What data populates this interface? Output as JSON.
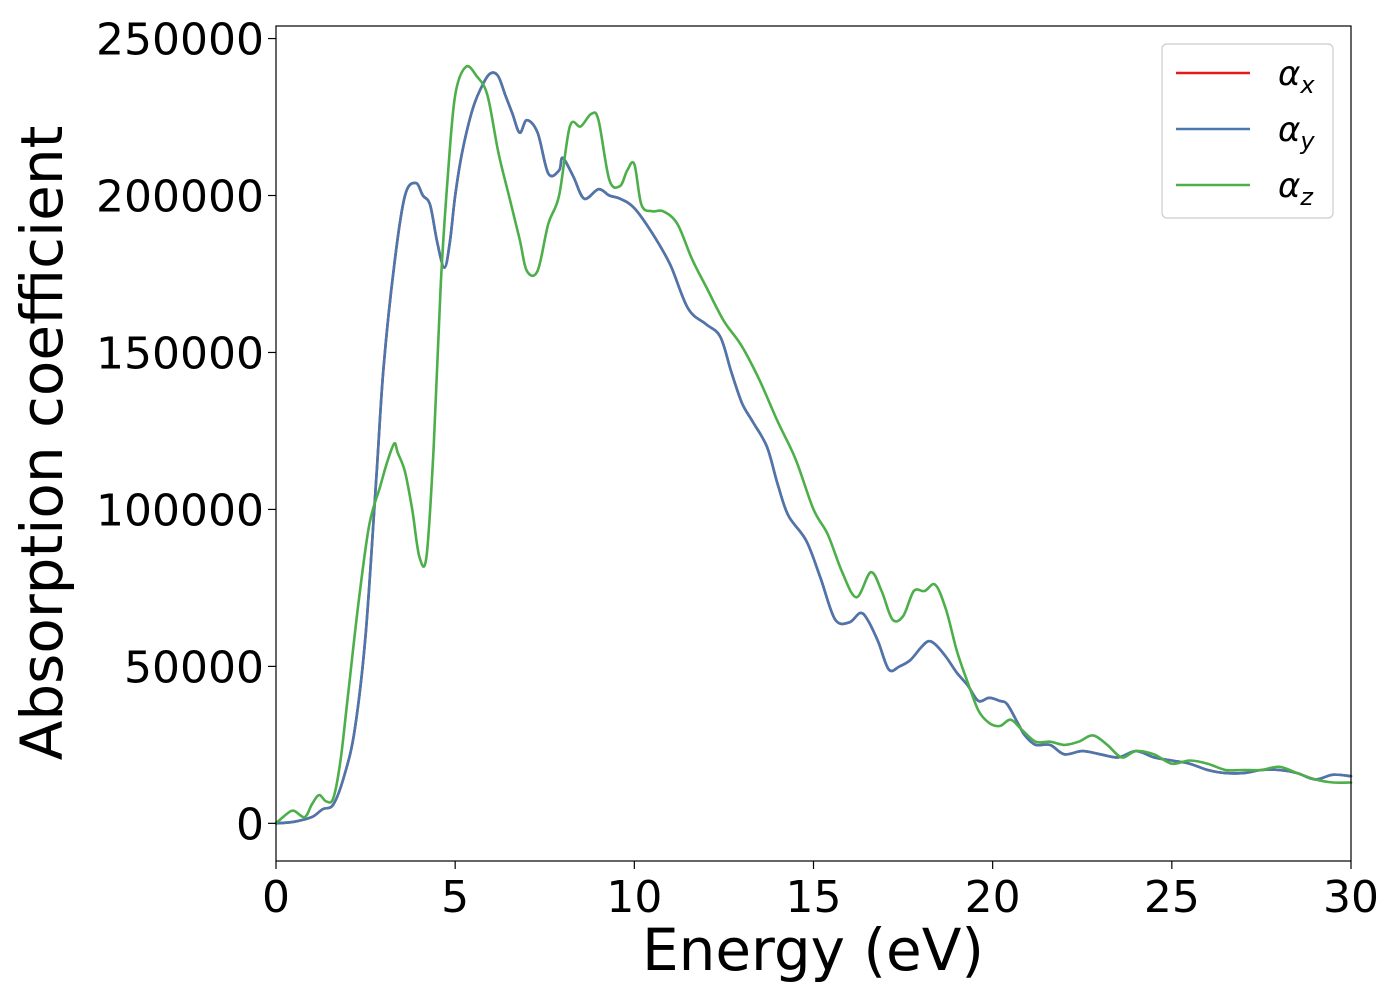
{
  "chart_data": {
    "type": "line",
    "title": "",
    "xlabel": "Energy (eV)",
    "ylabel": "Absorption coefficient",
    "xlim": [
      0,
      30
    ],
    "ylim": [
      -12000,
      254000
    ],
    "x_ticks": [
      0,
      5,
      10,
      15,
      20,
      25,
      30
    ],
    "x_tick_labels": [
      "0",
      "5",
      "10",
      "15",
      "20",
      "25",
      "30"
    ],
    "y_ticks": [
      0,
      50000,
      100000,
      150000,
      200000,
      250000
    ],
    "y_tick_labels": [
      "0",
      "50000",
      "100000",
      "150000",
      "200000",
      "250000"
    ],
    "grid": false,
    "legend_position": "top-right",
    "series": [
      {
        "name": "α_x",
        "legend_symbol": "α",
        "legend_subscript": "x",
        "color": "#e41a1c",
        "x": [
          0,
          0.5,
          1,
          1.3,
          1.6,
          1.9,
          2.2,
          2.5,
          2.8,
          3.0,
          3.3,
          3.6,
          3.9,
          4.1,
          4.3,
          4.5,
          4.7,
          4.85,
          5.0,
          5.2,
          5.5,
          5.8,
          6.0,
          6.2,
          6.4,
          6.6,
          6.8,
          7.0,
          7.3,
          7.6,
          7.9,
          8.0,
          8.3,
          8.6,
          9.0,
          9.3,
          9.6,
          10.0,
          10.5,
          11.0,
          11.5,
          12.0,
          12.4,
          12.7,
          13.0,
          13.3,
          13.7,
          14.0,
          14.3,
          14.8,
          15.2,
          15.6,
          16.0,
          16.3,
          16.5,
          16.8,
          17.1,
          17.4,
          17.7,
          18.0,
          18.2,
          18.4,
          18.7,
          19.0,
          19.3,
          19.6,
          19.9,
          20.2,
          20.4,
          20.7,
          20.9,
          21.2,
          21.6,
          22.0,
          22.5,
          23.0,
          23.5,
          24.0,
          24.5,
          25.0,
          25.5,
          26.0,
          26.5,
          27.0,
          27.5,
          28.0,
          28.5,
          29.0,
          29.5,
          30.0
        ],
        "y": [
          0,
          500,
          2000,
          4500,
          6000,
          15000,
          30000,
          60000,
          110000,
          145000,
          178000,
          200000,
          204000,
          200000,
          197000,
          185000,
          177000,
          185000,
          200000,
          214000,
          228000,
          236000,
          239000,
          238000,
          232000,
          226000,
          220000,
          224000,
          220000,
          207000,
          208000,
          212000,
          206000,
          199000,
          202000,
          200000,
          199000,
          196000,
          188000,
          178000,
          164000,
          159000,
          155000,
          144000,
          134000,
          128000,
          120000,
          108000,
          98000,
          90000,
          78000,
          65000,
          64000,
          67000,
          65000,
          58000,
          49000,
          50000,
          52000,
          56000,
          58000,
          57000,
          53000,
          48000,
          44000,
          39000,
          40000,
          39000,
          38000,
          32000,
          28000,
          25000,
          25000,
          22000,
          23000,
          22000,
          21000,
          23000,
          21000,
          20000,
          19000,
          17000,
          16000,
          16000,
          17000,
          17000,
          16000,
          14000,
          15500,
          15000
        ]
      },
      {
        "name": "α_y",
        "legend_symbol": "α",
        "legend_subscript": "y",
        "color": "#4a78ae",
        "x": [
          0,
          0.5,
          1,
          1.3,
          1.6,
          1.9,
          2.2,
          2.5,
          2.8,
          3.0,
          3.3,
          3.6,
          3.9,
          4.1,
          4.3,
          4.5,
          4.7,
          4.85,
          5.0,
          5.2,
          5.5,
          5.8,
          6.0,
          6.2,
          6.4,
          6.6,
          6.8,
          7.0,
          7.3,
          7.6,
          7.9,
          8.0,
          8.3,
          8.6,
          9.0,
          9.3,
          9.6,
          10.0,
          10.5,
          11.0,
          11.5,
          12.0,
          12.4,
          12.7,
          13.0,
          13.3,
          13.7,
          14.0,
          14.3,
          14.8,
          15.2,
          15.6,
          16.0,
          16.3,
          16.5,
          16.8,
          17.1,
          17.4,
          17.7,
          18.0,
          18.2,
          18.4,
          18.7,
          19.0,
          19.3,
          19.6,
          19.9,
          20.2,
          20.4,
          20.7,
          20.9,
          21.2,
          21.6,
          22.0,
          22.5,
          23.0,
          23.5,
          24.0,
          24.5,
          25.0,
          25.5,
          26.0,
          26.5,
          27.0,
          27.5,
          28.0,
          28.5,
          29.0,
          29.5,
          30.0
        ],
        "y": [
          0,
          500,
          2000,
          4500,
          6000,
          15000,
          30000,
          60000,
          110000,
          145000,
          178000,
          200000,
          204000,
          200000,
          197000,
          185000,
          177000,
          185000,
          200000,
          214000,
          228000,
          236000,
          239000,
          238000,
          232000,
          226000,
          220000,
          224000,
          220000,
          207000,
          208000,
          212000,
          206000,
          199000,
          202000,
          200000,
          199000,
          196000,
          188000,
          178000,
          164000,
          159000,
          155000,
          144000,
          134000,
          128000,
          120000,
          108000,
          98000,
          90000,
          78000,
          65000,
          64000,
          67000,
          65000,
          58000,
          49000,
          50000,
          52000,
          56000,
          58000,
          57000,
          53000,
          48000,
          44000,
          39000,
          40000,
          39000,
          38000,
          32000,
          28000,
          25000,
          25000,
          22000,
          23000,
          22000,
          21000,
          23000,
          21000,
          20000,
          19000,
          17000,
          16000,
          16000,
          17000,
          17000,
          16000,
          14000,
          15500,
          15000
        ]
      },
      {
        "name": "α_z",
        "legend_symbol": "α",
        "legend_subscript": "z",
        "color": "#4daf4a",
        "x": [
          0,
          0.3,
          0.5,
          0.8,
          1.0,
          1.2,
          1.4,
          1.6,
          1.8,
          2.0,
          2.3,
          2.6,
          2.9,
          3.1,
          3.3,
          3.4,
          3.6,
          3.8,
          4.0,
          4.2,
          4.4,
          4.6,
          4.8,
          5.0,
          5.3,
          5.6,
          5.9,
          6.2,
          6.5,
          6.8,
          7.0,
          7.3,
          7.6,
          7.9,
          8.2,
          8.5,
          8.8,
          9.0,
          9.3,
          9.6,
          9.8,
          10.0,
          10.2,
          10.5,
          10.8,
          11.2,
          11.6,
          12.0,
          12.5,
          13.0,
          13.5,
          14.0,
          14.5,
          15.0,
          15.4,
          15.8,
          16.2,
          16.6,
          16.9,
          17.2,
          17.5,
          17.8,
          18.1,
          18.4,
          18.7,
          19.0,
          19.3,
          19.6,
          19.9,
          20.2,
          20.5,
          20.8,
          21.2,
          21.6,
          22.0,
          22.4,
          22.8,
          23.2,
          23.6,
          24.0,
          24.5,
          25.0,
          25.5,
          26.0,
          26.5,
          27.0,
          27.5,
          28.0,
          28.5,
          29.0,
          29.5,
          30.0
        ],
        "y": [
          0,
          3000,
          4000,
          2000,
          6000,
          9000,
          7000,
          8000,
          20000,
          40000,
          70000,
          95000,
          107000,
          115000,
          121000,
          118000,
          112000,
          100000,
          85000,
          85000,
          120000,
          172000,
          207000,
          232000,
          241000,
          238000,
          232000,
          214000,
          200000,
          186000,
          176000,
          176000,
          191000,
          200000,
          222000,
          222000,
          226000,
          224000,
          205000,
          203000,
          208000,
          210000,
          197000,
          195000,
          195000,
          191000,
          180000,
          171000,
          160000,
          152000,
          141000,
          128000,
          116000,
          100000,
          92000,
          80000,
          72000,
          80000,
          74000,
          65000,
          66000,
          74000,
          74000,
          76000,
          68000,
          55000,
          45000,
          36000,
          32000,
          31000,
          33000,
          30000,
          26000,
          26000,
          25000,
          26000,
          28000,
          25000,
          21000,
          23000,
          22000,
          19000,
          20000,
          19000,
          17000,
          17000,
          17000,
          18000,
          16000,
          14000,
          13000,
          13000
        ]
      }
    ]
  }
}
